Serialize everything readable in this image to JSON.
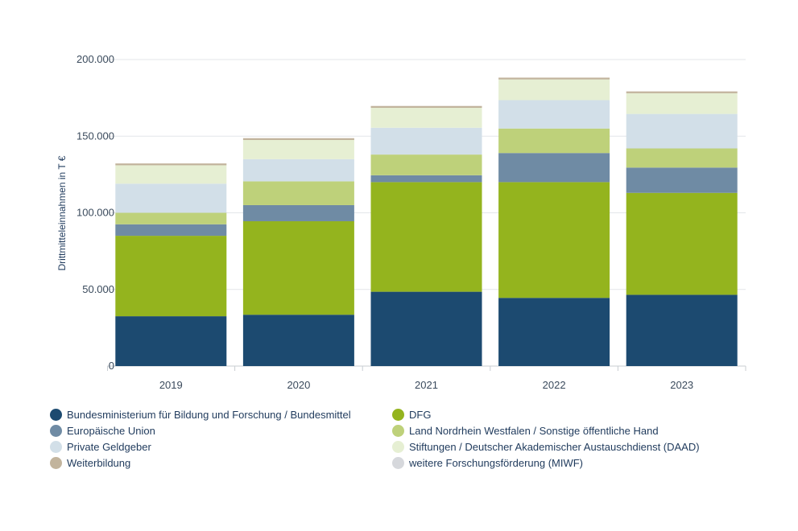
{
  "chart_data": {
    "type": "bar",
    "stacked": true,
    "categories": [
      "2019",
      "2020",
      "2021",
      "2022",
      "2023"
    ],
    "ylabel": "Drittmitteleinnahmen in T €",
    "ylim": [
      0,
      200000
    ],
    "yticks": [
      "0",
      "50.000",
      "100.000",
      "150.000",
      "200.000"
    ],
    "ytick_values": [
      0,
      50000,
      100000,
      150000,
      200000
    ],
    "grid": true,
    "legend_position": "bottom",
    "series": [
      {
        "name": "Bundesministerium für Bildung und Forschung / Bundesmittel",
        "color": "#1c4a70",
        "values": [
          32500,
          33500,
          48500,
          44500,
          46500
        ]
      },
      {
        "name": "DFG",
        "color": "#94b41e",
        "values": [
          52500,
          61000,
          71500,
          75500,
          66500
        ]
      },
      {
        "name": "Europäische Union",
        "color": "#6f8ba4",
        "values": [
          7500,
          10500,
          4500,
          19000,
          16500
        ]
      },
      {
        "name": "Land Nordrhein Westfalen / Sonstige öffentliche Hand",
        "color": "#bed17a",
        "values": [
          7500,
          15500,
          13500,
          16000,
          12500
        ]
      },
      {
        "name": "Private Geldgeber",
        "color": "#d2dfe8",
        "values": [
          19000,
          14500,
          17500,
          18500,
          22500
        ]
      },
      {
        "name": "Stiftungen / Deutscher Akademischer Austauschdienst (DAAD)",
        "color": "#e6efd3",
        "values": [
          12000,
          12500,
          13000,
          13500,
          13500
        ]
      },
      {
        "name": "Weiterbildung",
        "color": "#c2b49d",
        "values": [
          1200,
          1200,
          1200,
          1200,
          1200
        ]
      },
      {
        "name": "weitere Forschungsförderung (MIWF)",
        "color": "#d6d8dc",
        "values": [
          0,
          0,
          0,
          0,
          0
        ]
      }
    ]
  }
}
